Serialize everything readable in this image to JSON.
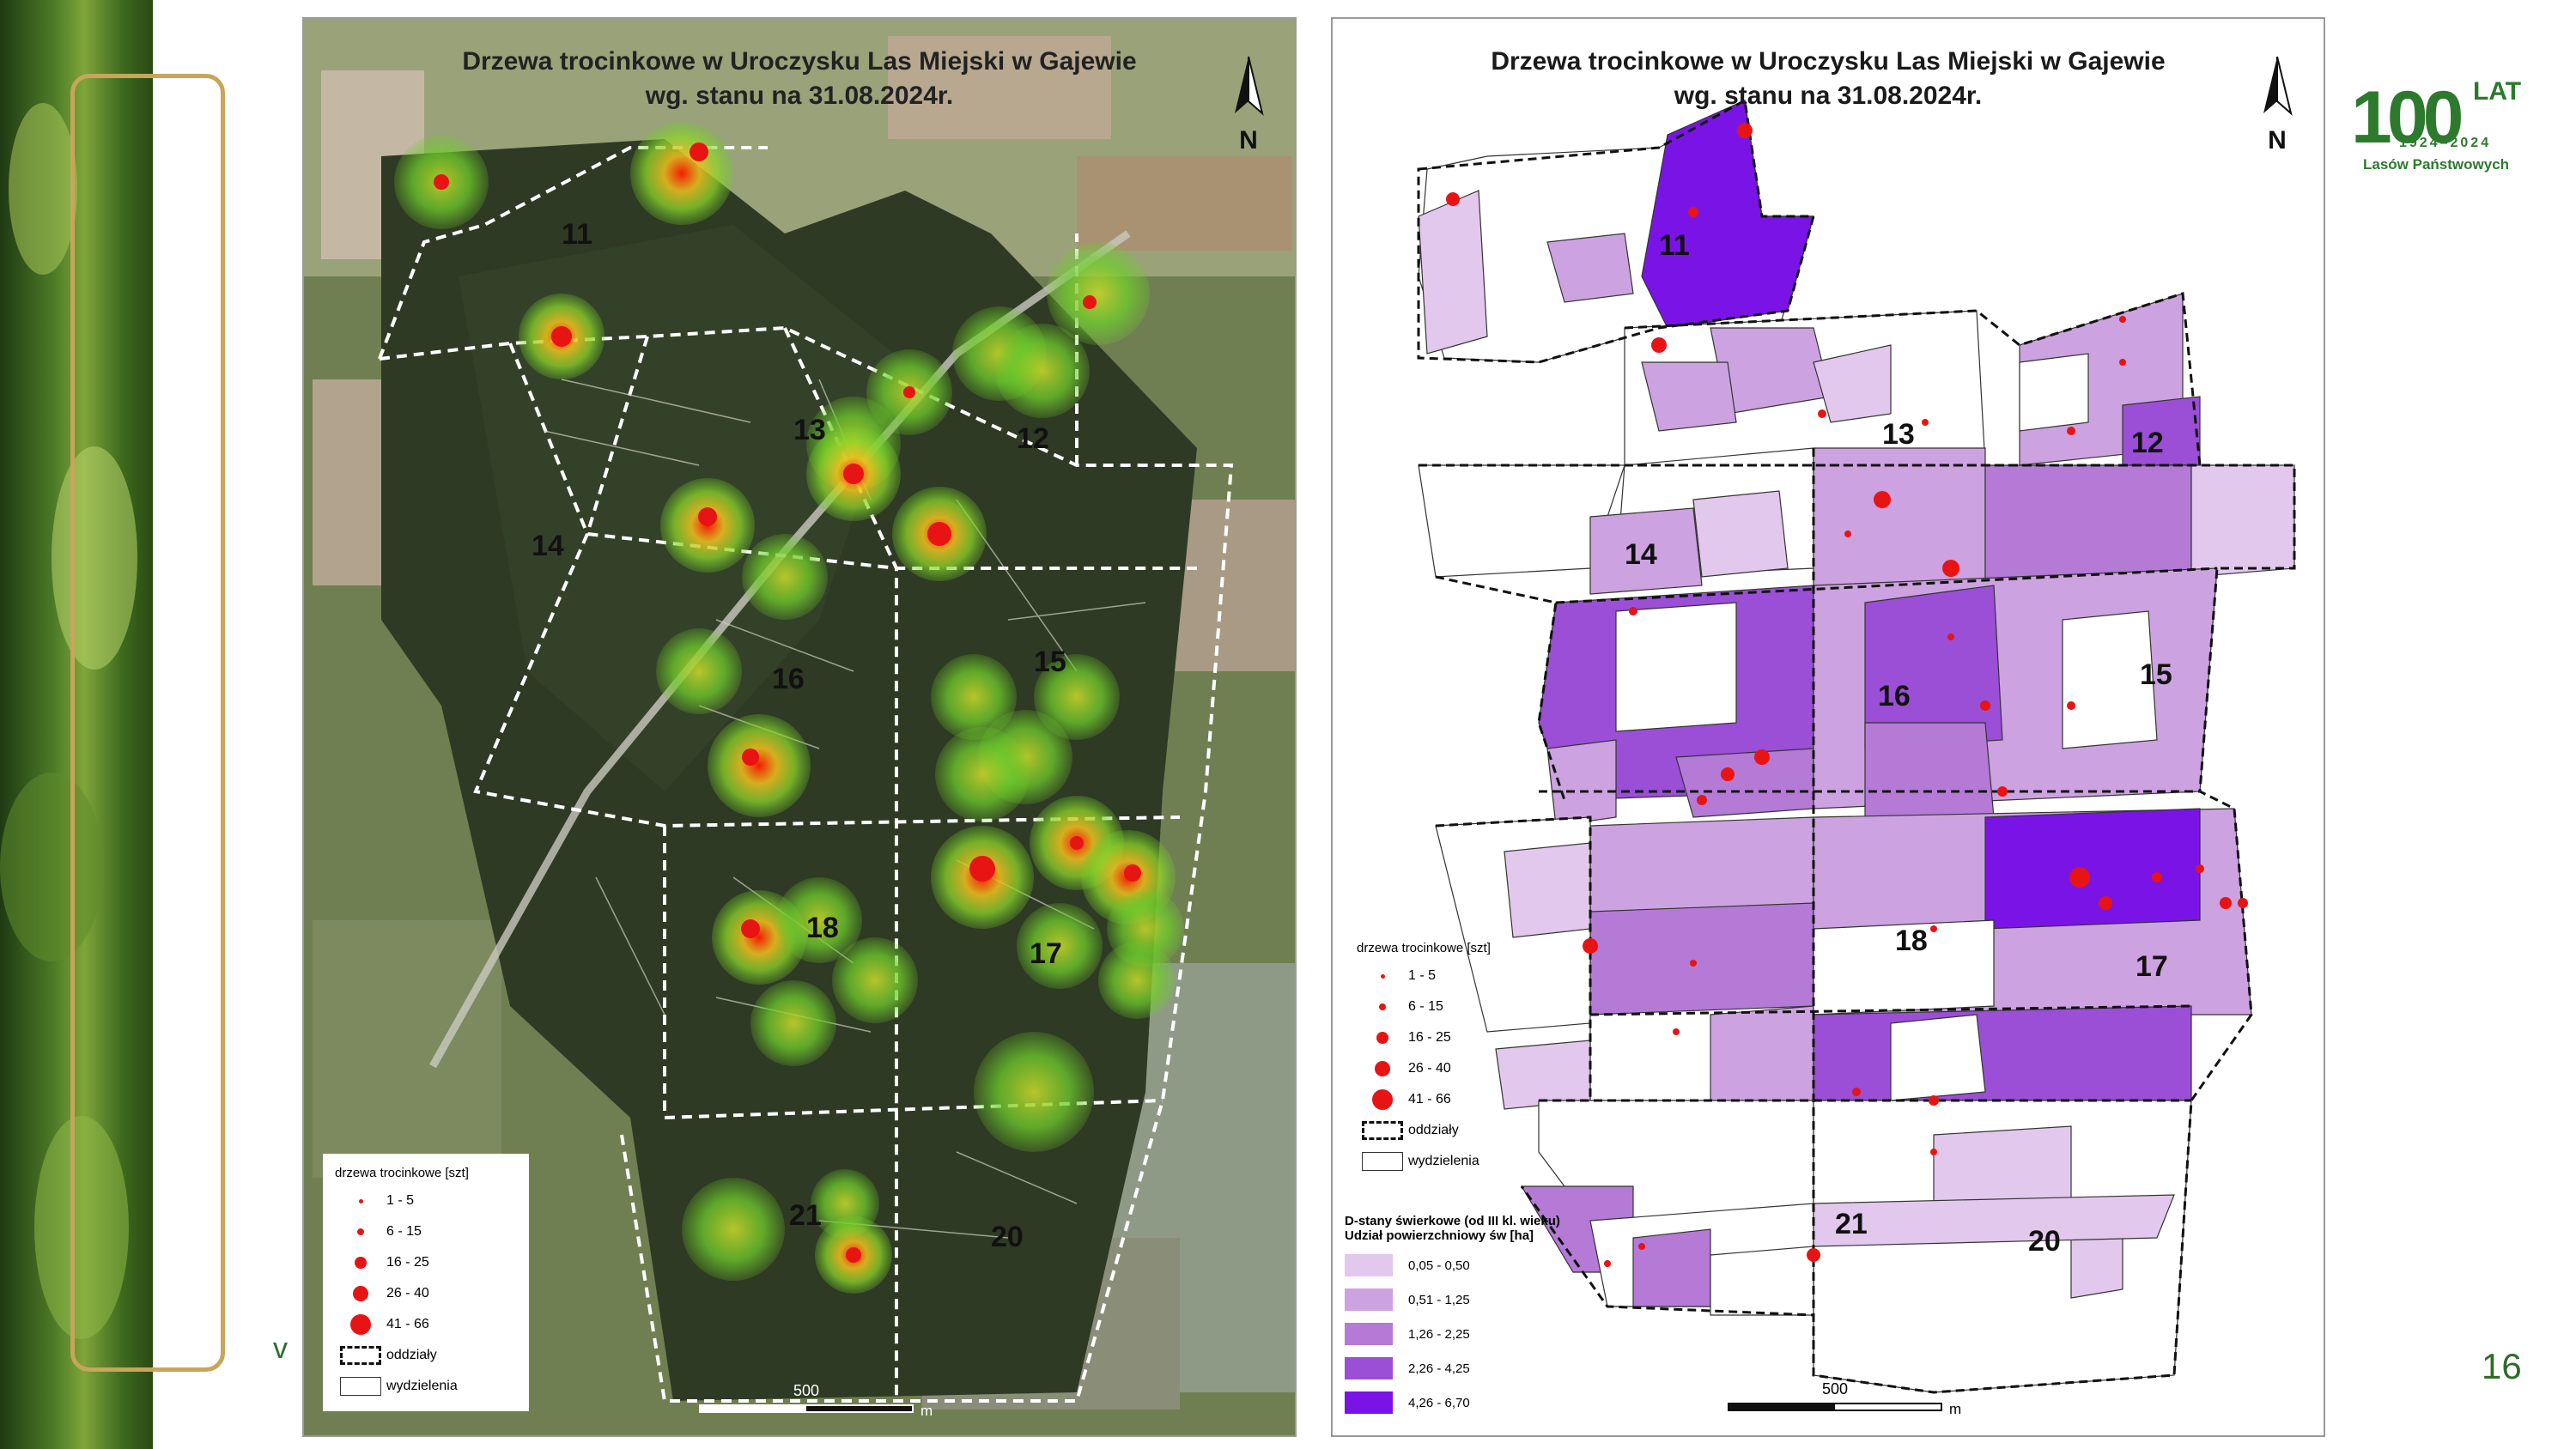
{
  "page_number": "16",
  "stray_text": "v",
  "logo": {
    "number": "100",
    "lat": "LAT",
    "years": "1924–2024",
    "subtitle": "Lasów Państwowych"
  },
  "left_map": {
    "title_line1": "Drzewa trocinkowe w Uroczysku Las Miejski w Gajewie",
    "title_line2": "wg. stanu na 31.08.2024r.",
    "north": "N",
    "unit_numbers": [
      "11",
      "12",
      "13",
      "14",
      "15",
      "16",
      "17",
      "18",
      "20",
      "21"
    ],
    "legend": {
      "title": "drzewa trocinkowe [szt]",
      "classes": [
        "1 - 5",
        "6 - 15",
        "16 - 25",
        "26 - 40",
        "41 - 66"
      ],
      "oddzialy": "oddziały",
      "wydzielenia": "wydzielenia"
    },
    "scale": {
      "label": "500",
      "unit": "m"
    }
  },
  "right_map": {
    "title_line1": "Drzewa trocinkowe w Uroczysku Las Miejski w Gajewie",
    "title_line2": "wg. stanu na 31.08.2024r.",
    "north": "N",
    "unit_numbers": [
      "11",
      "12",
      "13",
      "14",
      "15",
      "16",
      "17",
      "18",
      "20",
      "21"
    ],
    "legend": {
      "title": "drzewa trocinkowe [szt]",
      "classes": [
        "1 - 5",
        "6 - 15",
        "16 - 25",
        "26 - 40",
        "41 - 66"
      ],
      "oddzialy": "oddziały",
      "wydzielenia": "wydzielenia",
      "shade_title1": "D-stany świerkowe (od III kl. wieku)",
      "shade_title2": "Udział powierzchniowy św [ha]",
      "shade_classes": [
        {
          "label": "0,05 - 0,50",
          "color": "#e2c8ec"
        },
        {
          "label": "0,51 - 1,25",
          "color": "#cda2e0"
        },
        {
          "label": "1,26 - 2,25",
          "color": "#b47ad6"
        },
        {
          "label": "2,26 - 4,25",
          "color": "#9a4fd6"
        },
        {
          "label": "4,26 - 6,70",
          "color": "#7a14e6"
        }
      ]
    },
    "scale": {
      "label": "500",
      "unit": "m"
    }
  },
  "colors": {
    "gold_frame": "#c7a55a",
    "logo_green": "#2d7a2e",
    "point_red": "#e81414"
  }
}
